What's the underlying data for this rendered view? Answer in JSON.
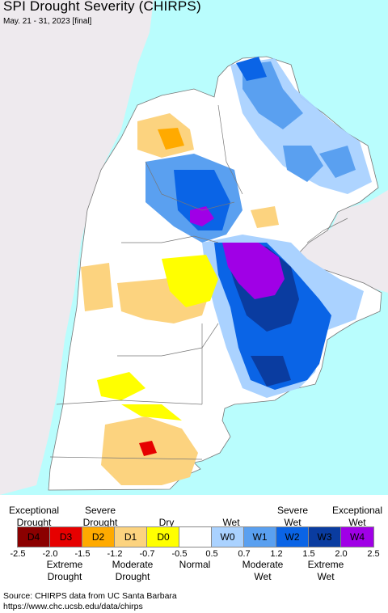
{
  "title": "SPI Drought Severity (CHIRPS)",
  "date_range": "May. 21 - 31, 2023 [final]",
  "colors": {
    "ocean": "#b9fdfd",
    "land_outside": "#eeeaee",
    "background_normal": "#ffffff",
    "borders": "#777777"
  },
  "legend": {
    "top_labels": [
      {
        "text": "Exceptional\nDrought",
        "key": "exceptional_drought"
      },
      {
        "text": "Severe\nDrought",
        "key": "severe_drought"
      },
      {
        "text": "Dry",
        "key": "dry"
      },
      {
        "text": "Wet",
        "key": "wet"
      },
      {
        "text": "Severe\nWet",
        "key": "severe_wet"
      },
      {
        "text": "Exceptional\nWet",
        "key": "exceptional_wet"
      }
    ],
    "bottom_labels": [
      {
        "text": "Extreme\nDrought",
        "key": "extreme_drought"
      },
      {
        "text": "Moderate\nDrought",
        "key": "moderate_drought"
      },
      {
        "text": "Normal",
        "key": "normal"
      },
      {
        "text": "Moderate\nWet",
        "key": "moderate_wet"
      },
      {
        "text": "Extreme\nWet",
        "key": "extreme_wet"
      }
    ],
    "drought_classes": [
      {
        "label": "D4",
        "color": "#8b0000",
        "text_color": "#000"
      },
      {
        "label": "D3",
        "color": "#e60000",
        "text_color": "#000"
      },
      {
        "label": "D2",
        "color": "#ffaa00",
        "text_color": "#000"
      },
      {
        "label": "D1",
        "color": "#fcd37f",
        "text_color": "#000"
      },
      {
        "label": "D0",
        "color": "#ffff00",
        "text_color": "#000"
      }
    ],
    "wet_classes": [
      {
        "label": "W0",
        "color": "#aad2ff",
        "text_color": "#000"
      },
      {
        "label": "W1",
        "color": "#5aa0f0",
        "text_color": "#000"
      },
      {
        "label": "W2",
        "color": "#0a64e6",
        "text_color": "#000"
      },
      {
        "label": "W3",
        "color": "#0a3ca0",
        "text_color": "#000"
      },
      {
        "label": "W4",
        "color": "#a000e6",
        "text_color": "#000"
      }
    ],
    "ticks": [
      "-2.5",
      "-2.0",
      "-1.5",
      "-1.2",
      "-0.7",
      "-0.5",
      "0.5",
      "0.7",
      "1.2",
      "1.5",
      "2.0",
      "2.5"
    ]
  },
  "source_line1": "Source: CHIRPS data from UC Santa Barbara",
  "source_line2": "https://www.chc.ucsb.edu/data/chirps"
}
